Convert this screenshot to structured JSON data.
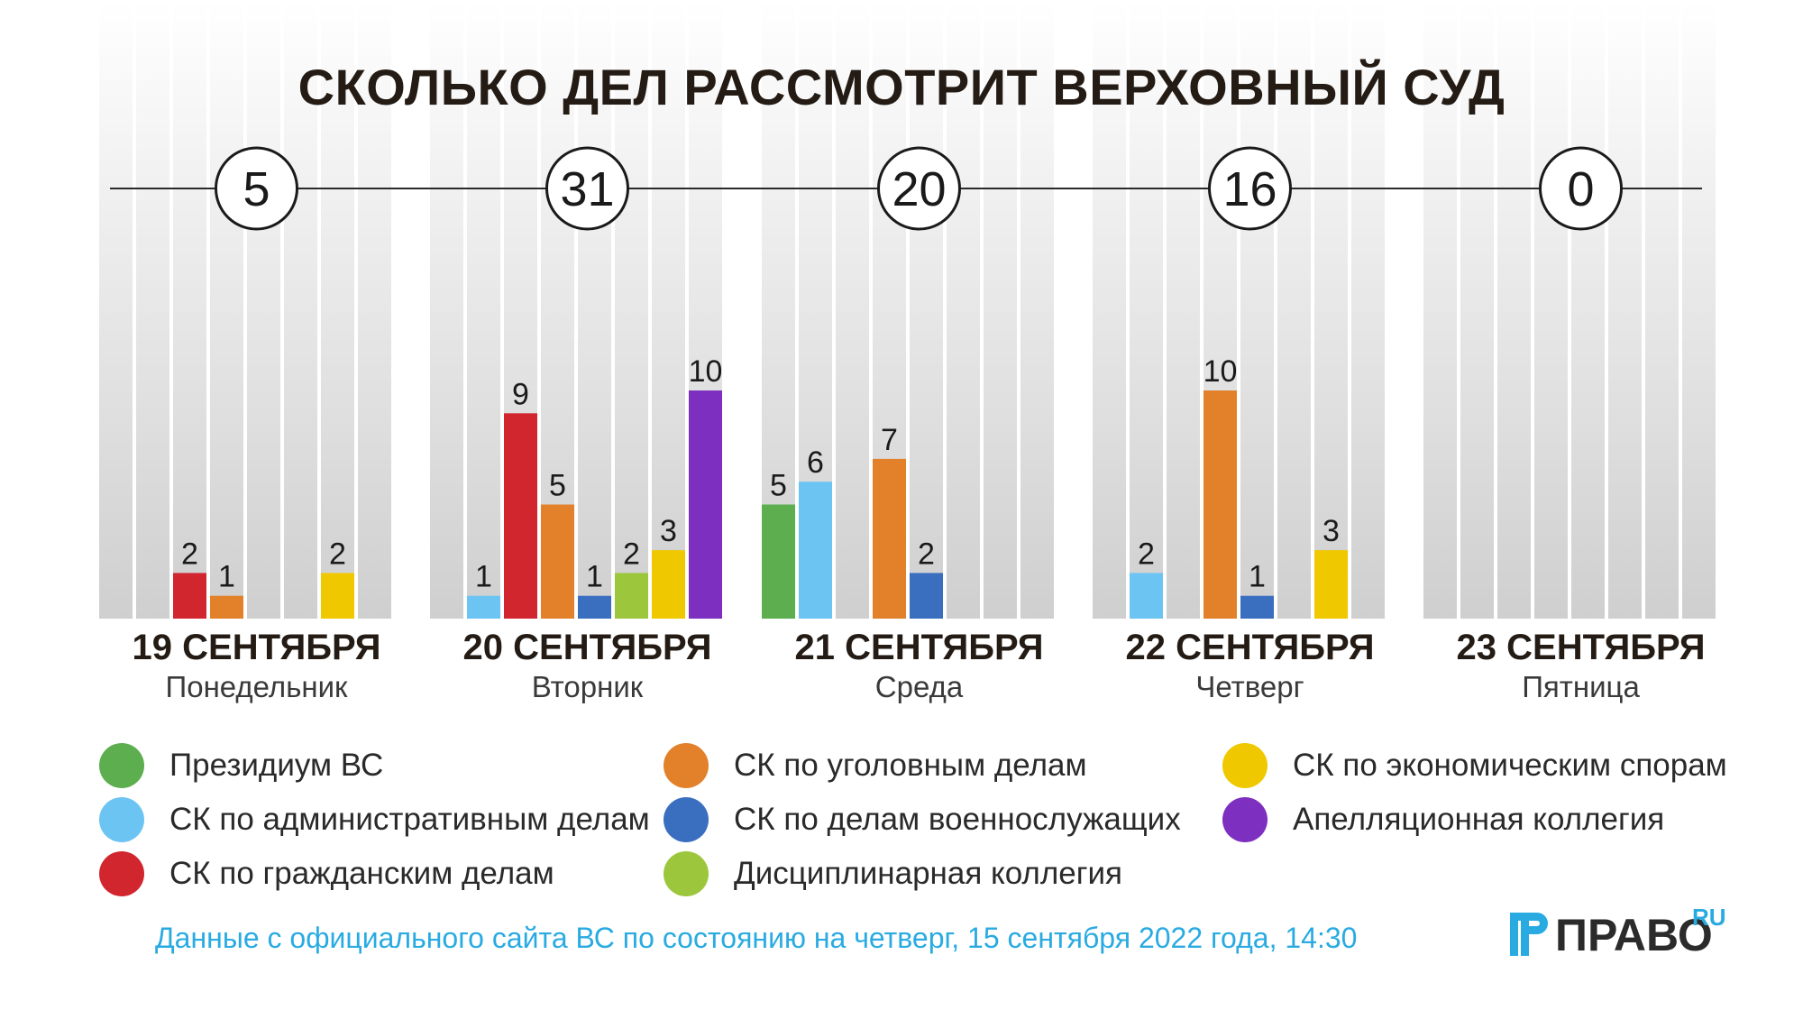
{
  "chart_data": {
    "type": "bar",
    "title": "СКОЛЬКО ДЕЛ РАССМОТРИТ ВЕРХОВНЫЙ СУД",
    "ylim": [
      0,
      10
    ],
    "categories": [
      {
        "date": "19 СЕНТЯБРЯ",
        "weekday": "Понедельник",
        "total": "5"
      },
      {
        "date": "20 СЕНТЯБРЯ",
        "weekday": "Вторник",
        "total": "31"
      },
      {
        "date": "21 СЕНТЯБРЯ",
        "weekday": "Среда",
        "total": "20"
      },
      {
        "date": "22 СЕНТЯБРЯ",
        "weekday": "Четверг",
        "total": "16"
      },
      {
        "date": "23 СЕНТЯБРЯ",
        "weekday": "Пятница",
        "total": "0"
      }
    ],
    "series": [
      {
        "name": "Президиум ВС",
        "color": "#5cae4e",
        "values": [
          0,
          0,
          5,
          0,
          0
        ]
      },
      {
        "name": "СК по административным делам",
        "color": "#6cc4f3",
        "values": [
          0,
          1,
          6,
          2,
          0
        ]
      },
      {
        "name": "СК по гражданским делам",
        "color": "#d2262e",
        "values": [
          2,
          9,
          0,
          0,
          0
        ]
      },
      {
        "name": "СК по уголовным делам",
        "color": "#e2812a",
        "values": [
          1,
          5,
          7,
          10,
          0
        ]
      },
      {
        "name": "СК по делам военнослужащих",
        "color": "#3a6fbf",
        "values": [
          0,
          1,
          2,
          1,
          0
        ]
      },
      {
        "name": "Дисциплинарная коллегия",
        "color": "#9cc63b",
        "values": [
          0,
          2,
          0,
          0,
          0
        ]
      },
      {
        "name": "СК по экономическим спорам",
        "color": "#f0c800",
        "values": [
          2,
          3,
          0,
          3,
          0
        ]
      },
      {
        "name": "Апелляционная коллегия",
        "color": "#7d2fbf",
        "values": [
          0,
          10,
          0,
          0,
          0
        ]
      }
    ]
  },
  "footer": {
    "source": "Данные с официального сайта ВС по состоянию на четверг, 15 сентября 2022 года, 14:30",
    "logo_text": "ПРАВО",
    "logo_suffix": "RU"
  },
  "colors": {
    "text_dark": "#231b14",
    "accent": "#29abe2",
    "panel": "#e4e4e4"
  }
}
